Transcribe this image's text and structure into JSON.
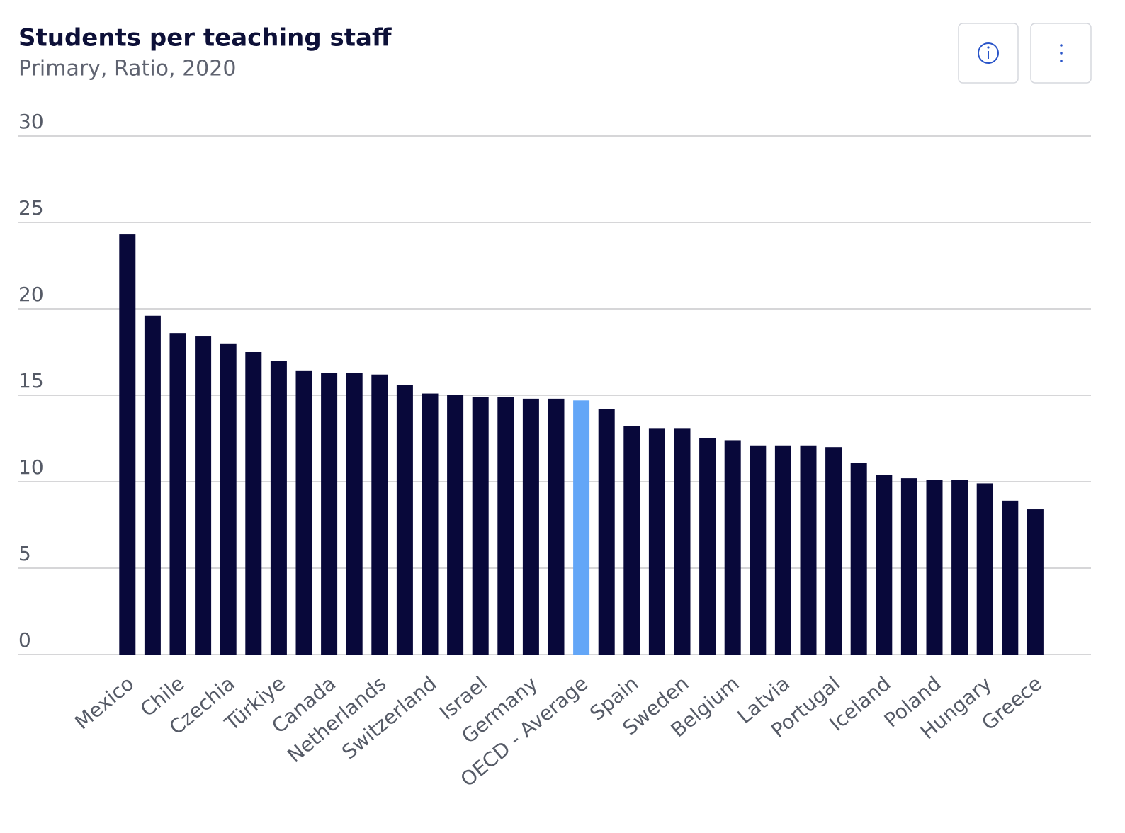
{
  "chart_data": {
    "type": "bar",
    "title": "Students per teaching staff",
    "subtitle": "Primary, Ratio, 2020",
    "categories": [
      "Mexico",
      null,
      "Chile",
      null,
      "Czechia",
      null,
      "Türkiye",
      null,
      "Canada",
      null,
      "Netherlands",
      null,
      "Switzerland",
      null,
      "Israel",
      null,
      "Germany",
      null,
      "OECD - Average",
      null,
      "Spain",
      null,
      "Sweden",
      null,
      "Belgium",
      null,
      "Latvia",
      null,
      "Portugal",
      null,
      "Iceland",
      null,
      "Poland",
      null,
      "Hungary",
      null,
      "Greece"
    ],
    "values": [
      24.3,
      19.6,
      18.6,
      18.4,
      18.0,
      17.5,
      17.0,
      16.4,
      16.3,
      16.3,
      16.2,
      15.6,
      15.1,
      15.0,
      14.9,
      14.9,
      14.8,
      14.8,
      14.7,
      14.2,
      13.2,
      13.1,
      13.1,
      12.5,
      12.4,
      12.1,
      12.1,
      12.1,
      12.0,
      11.1,
      10.4,
      10.2,
      10.1,
      10.1,
      9.9,
      8.9,
      8.4
    ],
    "colors": [
      "#08083a",
      "#08083a",
      "#08083a",
      "#08083a",
      "#08083a",
      "#08083a",
      "#08083a",
      "#08083a",
      "#08083a",
      "#08083a",
      "#08083a",
      "#08083a",
      "#08083a",
      "#08083a",
      "#08083a",
      "#08083a",
      "#08083a",
      "#08083a",
      "#63a6f7",
      "#08083a",
      "#08083a",
      "#08083a",
      "#08083a",
      "#08083a",
      "#08083a",
      "#08083a",
      "#08083a",
      "#08083a",
      "#08083a",
      "#08083a",
      "#08083a",
      "#08083a",
      "#08083a",
      "#08083a",
      "#08083a",
      "#08083a",
      "#08083a"
    ],
    "ylim": [
      0,
      30
    ],
    "yticks": [
      0,
      5,
      10,
      15,
      20,
      25,
      30
    ],
    "grid": true
  }
}
